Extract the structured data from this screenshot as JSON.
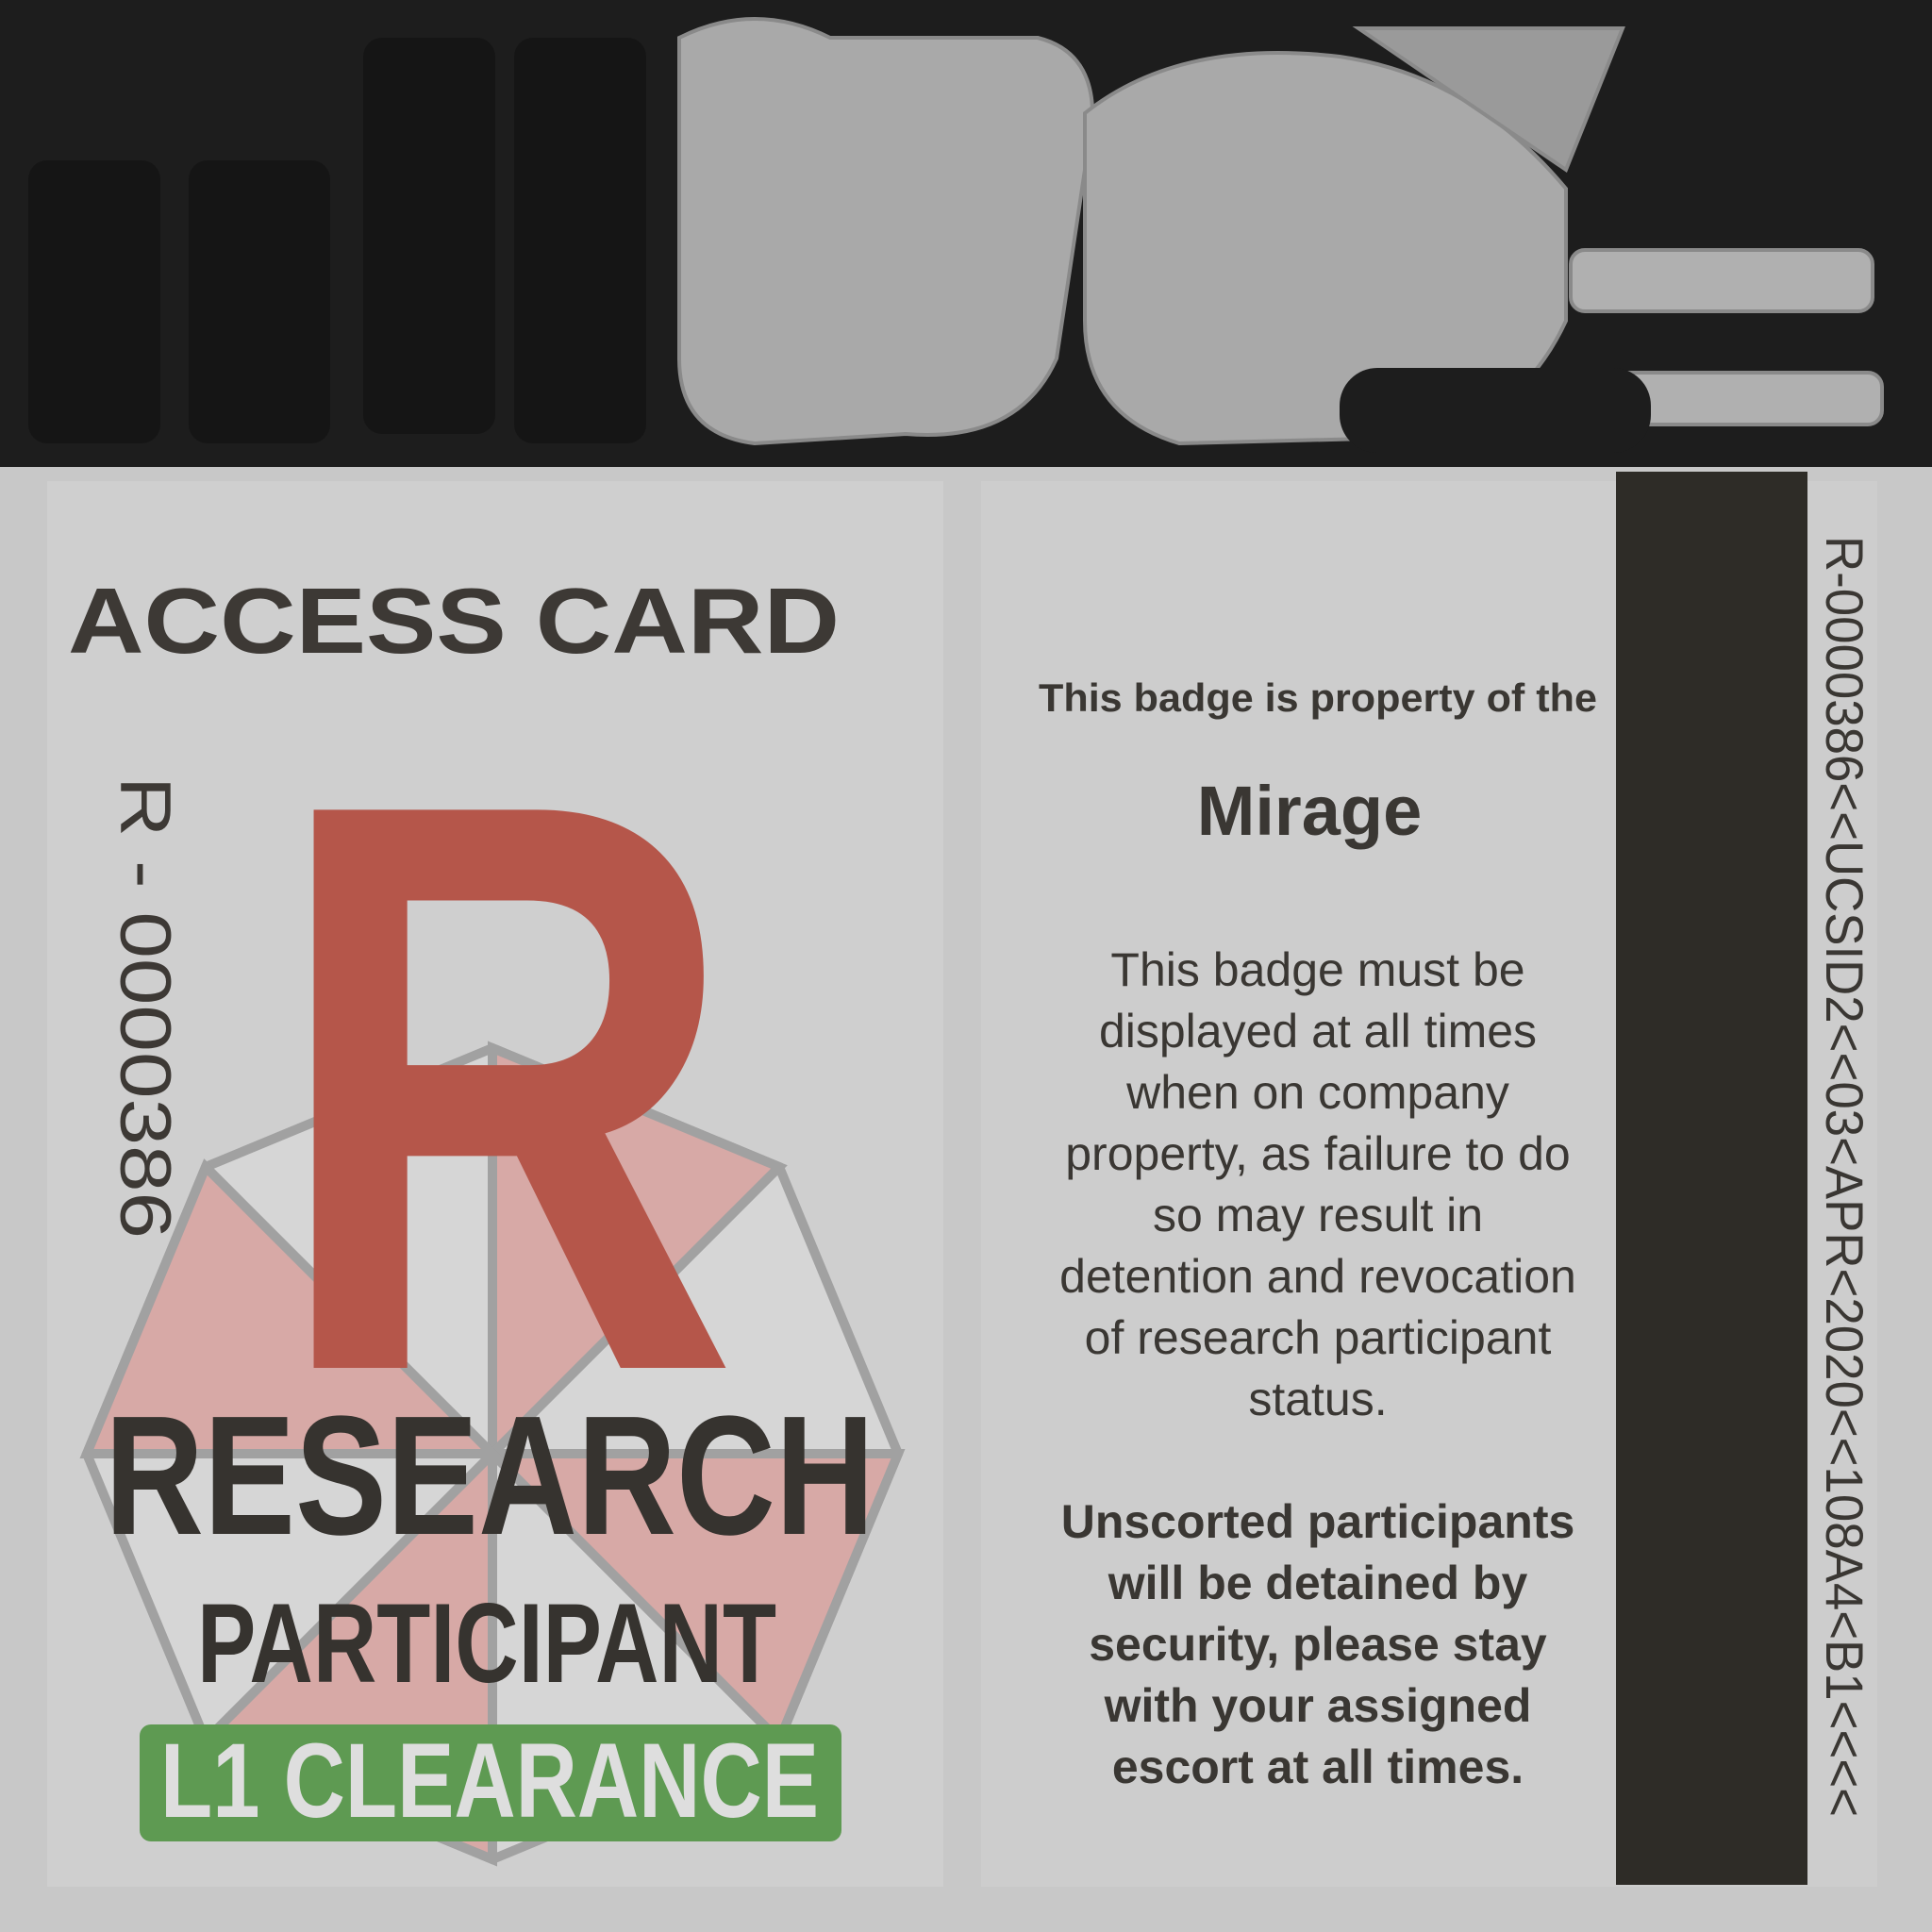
{
  "card": {
    "front": {
      "title": "ACCESS CARD",
      "id_vertical": "R - 0000386",
      "letter": "R",
      "role_main": "RESEARCH",
      "role_sub": "PARTICIPANT",
      "clearance": "L1 CLEARANCE"
    },
    "back": {
      "property_line": "This badge is property of the",
      "owner": "Mirage",
      "notice_lines": [
        "This badge must be",
        "displayed at all times",
        "when on company",
        "property, as failure to do",
        "so may result in",
        "detention and revocation",
        "of research participant",
        "status."
      ],
      "warning_lines": [
        "Unscorted participants",
        "will be detained by",
        "security, please stay",
        "with your assigned",
        "escort at all times."
      ],
      "strip_code": "R-0000386<<UCSID2<<03<APR<2020<<108A4<B1<<<<"
    }
  }
}
